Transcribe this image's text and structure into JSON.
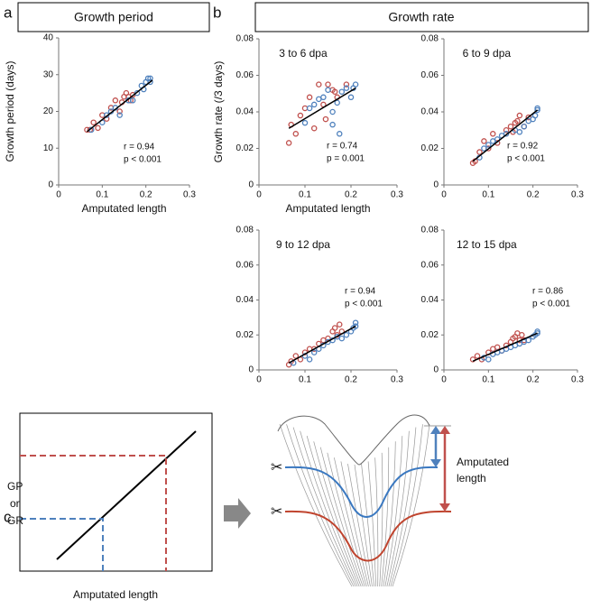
{
  "panels": [
    {
      "label": "a",
      "header": "Growth period"
    },
    {
      "label": "b",
      "header": "Growth rate"
    },
    {
      "label": "c"
    }
  ],
  "chart_data": [
    {
      "type": "scatter",
      "ylabel": "Growth period (days)",
      "xlabel": "Amputated length",
      "xlim": [
        0,
        0.3
      ],
      "xticks": [
        0,
        0.1,
        0.2,
        0.3
      ],
      "ylim": [
        0,
        40
      ],
      "yticks": [
        0,
        10,
        20,
        30,
        40
      ],
      "annotations": [
        "r = 0.94",
        "p < 0.001"
      ],
      "series": [
        {
          "color": "#c0504d",
          "x": [
            0.065,
            0.072,
            0.08,
            0.09,
            0.1,
            0.11,
            0.12,
            0.13,
            0.14,
            0.145,
            0.15,
            0.155,
            0.16,
            0.165,
            0.17
          ],
          "values": [
            15,
            15,
            17,
            15.5,
            19,
            18,
            21,
            23,
            20,
            22.5,
            24,
            25,
            24,
            23,
            24.5
          ]
        },
        {
          "color": "#4f81bd",
          "x": [
            0.075,
            0.1,
            0.11,
            0.12,
            0.13,
            0.14,
            0.16,
            0.17,
            0.18,
            0.19,
            0.195,
            0.2,
            0.205,
            0.21,
            0.21
          ],
          "values": [
            15,
            17,
            19,
            20,
            21,
            19,
            23,
            23,
            25,
            27,
            26,
            28,
            29,
            28,
            29
          ]
        }
      ],
      "fit": {
        "x": [
          0.065,
          0.215
        ],
        "values": [
          14.5,
          28.5
        ]
      }
    },
    {
      "type": "scatter",
      "title": "3 to 6 dpa",
      "ylabel": "Growth rate (/3 days)",
      "xlabel": "Amputated length",
      "xlim": [
        0,
        0.3
      ],
      "xticks": [
        0,
        0.1,
        0.2,
        0.3
      ],
      "ylim": [
        0,
        0.08
      ],
      "yticks": [
        0,
        0.02,
        0.04,
        0.06,
        0.08
      ],
      "annotations": [
        "r = 0.74",
        "p = 0.001"
      ],
      "series": [
        {
          "color": "#c0504d",
          "x": [
            0.065,
            0.07,
            0.08,
            0.09,
            0.1,
            0.11,
            0.12,
            0.13,
            0.14,
            0.145,
            0.15,
            0.16,
            0.165,
            0.17,
            0.19
          ],
          "values": [
            0.023,
            0.033,
            0.028,
            0.038,
            0.042,
            0.048,
            0.031,
            0.055,
            0.044,
            0.036,
            0.055,
            0.052,
            0.051,
            0.048,
            0.055
          ]
        },
        {
          "color": "#4f81bd",
          "x": [
            0.11,
            0.12,
            0.13,
            0.14,
            0.15,
            0.16,
            0.17,
            0.18,
            0.19,
            0.2,
            0.205,
            0.21,
            0.1,
            0.16,
            0.175
          ],
          "values": [
            0.042,
            0.044,
            0.047,
            0.048,
            0.052,
            0.033,
            0.045,
            0.051,
            0.053,
            0.048,
            0.053,
            0.055,
            0.034,
            0.04,
            0.028
          ]
        }
      ],
      "fit": {
        "x": [
          0.065,
          0.21
        ],
        "values": [
          0.031,
          0.053
        ]
      }
    },
    {
      "type": "scatter",
      "title": "6 to 9 dpa",
      "xlim": [
        0,
        0.3
      ],
      "xticks": [
        0,
        0.1,
        0.2,
        0.3
      ],
      "ylim": [
        0,
        0.08
      ],
      "yticks": [
        0,
        0.02,
        0.04,
        0.06,
        0.08
      ],
      "annotations": [
        "r = 0.92",
        "p < 0.001"
      ],
      "series": [
        {
          "color": "#c0504d",
          "x": [
            0.065,
            0.07,
            0.08,
            0.09,
            0.1,
            0.11,
            0.12,
            0.14,
            0.15,
            0.16,
            0.165,
            0.17,
            0.18,
            0.19,
            0.155
          ],
          "values": [
            0.012,
            0.013,
            0.018,
            0.024,
            0.02,
            0.028,
            0.023,
            0.03,
            0.032,
            0.034,
            0.035,
            0.038,
            0.032,
            0.037,
            0.029
          ]
        },
        {
          "color": "#4f81bd",
          "x": [
            0.08,
            0.09,
            0.1,
            0.11,
            0.12,
            0.13,
            0.14,
            0.16,
            0.17,
            0.18,
            0.19,
            0.2,
            0.205,
            0.21,
            0.21
          ],
          "values": [
            0.015,
            0.02,
            0.022,
            0.024,
            0.025,
            0.027,
            0.028,
            0.03,
            0.029,
            0.032,
            0.035,
            0.036,
            0.038,
            0.041,
            0.042
          ]
        }
      ],
      "fit": {
        "x": [
          0.065,
          0.21
        ],
        "values": [
          0.013,
          0.041
        ]
      }
    },
    {
      "type": "scatter",
      "title": "9 to 12 dpa",
      "xlim": [
        0,
        0.3
      ],
      "xticks": [
        0,
        0.1,
        0.2,
        0.3
      ],
      "ylim": [
        0,
        0.08
      ],
      "yticks": [
        0,
        0.02,
        0.04,
        0.06,
        0.08
      ],
      "annotations": [
        "r = 0.94",
        "p < 0.001"
      ],
      "series": [
        {
          "color": "#c0504d",
          "x": [
            0.065,
            0.07,
            0.08,
            0.09,
            0.1,
            0.11,
            0.12,
            0.13,
            0.14,
            0.15,
            0.16,
            0.165,
            0.17,
            0.175,
            0.18
          ],
          "values": [
            0.003,
            0.005,
            0.008,
            0.006,
            0.01,
            0.012,
            0.012,
            0.015,
            0.017,
            0.018,
            0.022,
            0.024,
            0.02,
            0.026,
            0.022
          ]
        },
        {
          "color": "#4f81bd",
          "x": [
            0.075,
            0.1,
            0.11,
            0.12,
            0.13,
            0.14,
            0.15,
            0.16,
            0.18,
            0.19,
            0.2,
            0.205,
            0.21,
            0.21,
            0.17
          ],
          "values": [
            0.004,
            0.008,
            0.006,
            0.01,
            0.012,
            0.014,
            0.016,
            0.017,
            0.018,
            0.02,
            0.022,
            0.024,
            0.025,
            0.027,
            0.019
          ]
        }
      ],
      "fit": {
        "x": [
          0.065,
          0.21
        ],
        "values": [
          0.004,
          0.025
        ]
      }
    },
    {
      "type": "scatter",
      "title": "12 to 15 dpa",
      "xlim": [
        0,
        0.3
      ],
      "xticks": [
        0,
        0.1,
        0.2,
        0.3
      ],
      "ylim": [
        0,
        0.08
      ],
      "yticks": [
        0,
        0.02,
        0.04,
        0.06,
        0.08
      ],
      "annotations": [
        "r = 0.86",
        "p < 0.001"
      ],
      "series": [
        {
          "color": "#c0504d",
          "x": [
            0.065,
            0.075,
            0.085,
            0.1,
            0.11,
            0.12,
            0.13,
            0.14,
            0.15,
            0.155,
            0.16,
            0.165,
            0.17,
            0.175,
            0.18
          ],
          "values": [
            0.006,
            0.008,
            0.006,
            0.01,
            0.012,
            0.013,
            0.011,
            0.014,
            0.016,
            0.018,
            0.019,
            0.021,
            0.017,
            0.02,
            0.017
          ]
        },
        {
          "color": "#4f81bd",
          "x": [
            0.09,
            0.1,
            0.11,
            0.12,
            0.13,
            0.14,
            0.15,
            0.16,
            0.17,
            0.18,
            0.19,
            0.2,
            0.205,
            0.21,
            0.21
          ],
          "values": [
            0.007,
            0.006,
            0.009,
            0.01,
            0.011,
            0.012,
            0.013,
            0.014,
            0.015,
            0.016,
            0.017,
            0.019,
            0.02,
            0.021,
            0.022
          ]
        }
      ],
      "fit": {
        "x": [
          0.065,
          0.21
        ],
        "values": [
          0.005,
          0.021
        ]
      }
    }
  ],
  "diagram": {
    "y_label_lines": [
      "GP",
      "or",
      "GR"
    ],
    "x_label": "Amputated length",
    "fin_label_lines": [
      "Amputated",
      "length"
    ]
  }
}
